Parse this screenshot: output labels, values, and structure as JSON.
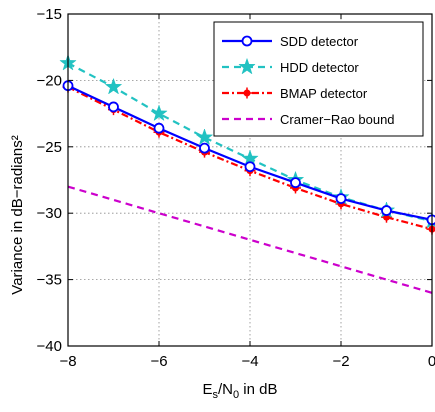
{
  "chart_data": {
    "type": "line",
    "xlabel": {
      "main": "E",
      "sub1": "s",
      "mid": "/N",
      "sub2": "0",
      "tail": " in dB"
    },
    "ylabel": "Variance in dB−radians²",
    "xlim": [
      -8,
      0
    ],
    "ylim": [
      -40,
      -15
    ],
    "grid": true,
    "legend_position": "top-right",
    "x_ticks": [
      -8,
      -6,
      -4,
      -2,
      0
    ],
    "x_tick_labels": [
      "−8",
      "−6",
      "−4",
      "−2",
      "0"
    ],
    "y_ticks": [
      -40,
      -35,
      -30,
      -25,
      -20,
      -15
    ],
    "y_tick_labels": [
      "−40",
      "−35",
      "−30",
      "−25",
      "−20",
      "−15"
    ],
    "series": [
      {
        "name": "SDD detector",
        "color": "#0000ff",
        "line": "solid",
        "marker": "circle",
        "x": [
          -8,
          -7,
          -6,
          -5,
          -4,
          -3,
          -2,
          -1,
          0
        ],
        "y": [
          -20.4,
          -22.0,
          -23.6,
          -25.1,
          -26.5,
          -27.7,
          -28.9,
          -29.8,
          -30.5
        ]
      },
      {
        "name": "HDD detector",
        "color": "#22c2c2",
        "line": "dashed",
        "marker": "star",
        "x": [
          -8,
          -7,
          -6,
          -5,
          -4,
          -3,
          -2,
          -1,
          0
        ],
        "y": [
          -18.7,
          -20.5,
          -22.5,
          -24.3,
          -25.9,
          -27.5,
          -28.8,
          -29.8,
          -30.6
        ]
      },
      {
        "name": "BMAP detector",
        "color": "#ff0000",
        "line": "dashdot",
        "marker": "dot",
        "x": [
          -8,
          -7,
          -6,
          -5,
          -4,
          -3,
          -2,
          -1,
          0
        ],
        "y": [
          -20.5,
          -22.2,
          -23.9,
          -25.4,
          -26.8,
          -28.1,
          -29.3,
          -30.3,
          -31.2
        ]
      },
      {
        "name": "Cramer−Rao bound",
        "color": "#cc00cc",
        "line": "dashed",
        "marker": "none",
        "x": [
          -8,
          0
        ],
        "y": [
          -28.0,
          -36.0
        ]
      }
    ]
  }
}
